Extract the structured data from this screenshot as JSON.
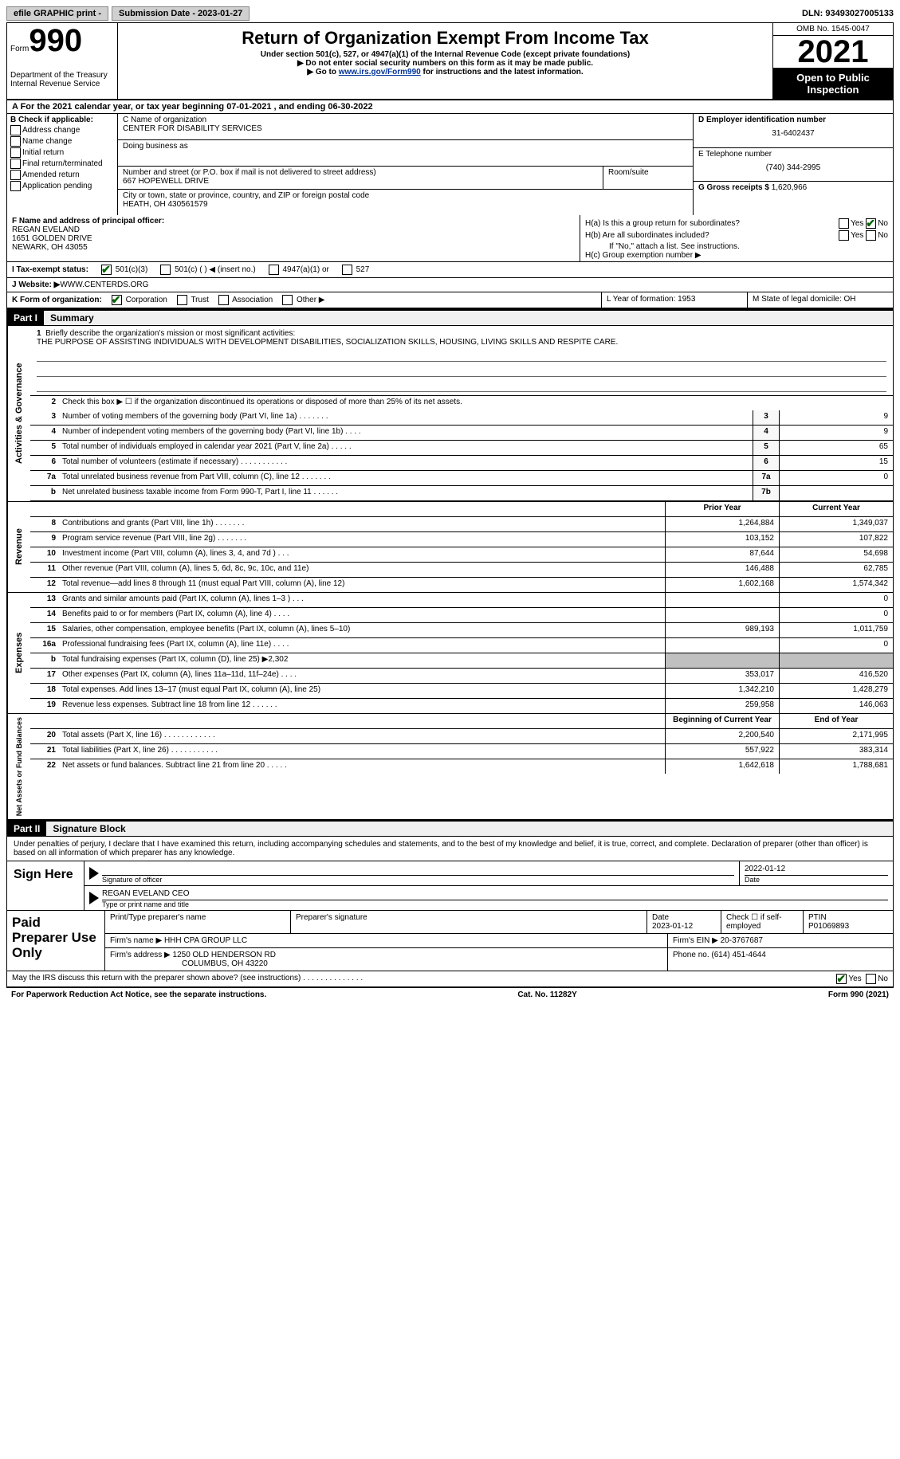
{
  "topbar": {
    "efile": "efile GRAPHIC print -",
    "submission_label": "Submission Date - 2023-01-27",
    "dln_label": "DLN: 93493027005133"
  },
  "header": {
    "form_word": "Form",
    "form_number": "990",
    "dept": "Department of the Treasury",
    "irs": "Internal Revenue Service",
    "title": "Return of Organization Exempt From Income Tax",
    "subtitle": "Under section 501(c), 527, or 4947(a)(1) of the Internal Revenue Code (except private foundations)",
    "warn1": "▶ Do not enter social security numbers on this form as it may be made public.",
    "warn2_pre": "▶ Go to ",
    "warn2_link": "www.irs.gov/Form990",
    "warn2_post": " for instructions and the latest information.",
    "omb": "OMB No. 1545-0047",
    "year": "2021",
    "inspection": "Open to Public Inspection"
  },
  "lineA": "A For the 2021 calendar year, or tax year beginning 07-01-2021    , and ending 06-30-2022",
  "B": {
    "label": "B Check if applicable:",
    "opts": [
      "Address change",
      "Name change",
      "Initial return",
      "Final return/terminated",
      "Amended return",
      "Application pending"
    ]
  },
  "C": {
    "name_label": "C Name of organization",
    "name": "CENTER FOR DISABILITY SERVICES",
    "dba_label": "Doing business as",
    "addr_label": "Number and street (or P.O. box if mail is not delivered to street address)",
    "room_label": "Room/suite",
    "addr": "667 HOPEWELL DRIVE",
    "city_label": "City or town, state or province, country, and ZIP or foreign postal code",
    "city": "HEATH, OH  430561579"
  },
  "D": {
    "ein_label": "D Employer identification number",
    "ein": "31-6402437",
    "phone_label": "E Telephone number",
    "phone": "(740) 344-2995",
    "gross_label": "G Gross receipts $",
    "gross": "1,620,966"
  },
  "F": {
    "label": "F  Name and address of principal officer:",
    "name": "REGAN EVELAND",
    "addr1": "1651 GOLDEN DRIVE",
    "addr2": "NEWARK, OH  43055"
  },
  "H": {
    "a_label": "H(a)  Is this a group return for subordinates?",
    "b_label": "H(b)  Are all subordinates included?",
    "note": "If \"No,\" attach a list. See instructions.",
    "c_label": "H(c)  Group exemption number ▶"
  },
  "I": {
    "label": "I  Tax-exempt status:",
    "opts": [
      "501(c)(3)",
      "501(c) (  ) ◀ (insert no.)",
      "4947(a)(1) or",
      "527"
    ]
  },
  "J": {
    "label": "J  Website: ▶",
    "value": " WWW.CENTERDS.ORG"
  },
  "K": {
    "label": "K Form of organization:",
    "opts": [
      "Corporation",
      "Trust",
      "Association",
      "Other ▶"
    ],
    "L": "L Year of formation: 1953",
    "M": "M State of legal domicile: OH"
  },
  "part1": {
    "tag": "Part I",
    "title": "Summary",
    "line1_label": "Briefly describe the organization's mission or most significant activities:",
    "mission": "THE PURPOSE OF ASSISTING INDIVIDUALS WITH DEVELOPMENT DISABILITIES, SOCIALIZATION SKILLS, HOUSING, LIVING SKILLS AND RESPITE CARE.",
    "line2": "Check this box ▶ ☐  if the organization discontinued its operations or disposed of more than 25% of its net assets.",
    "sidebar1": "Activities & Governance",
    "sidebar2": "Revenue",
    "sidebar3": "Expenses",
    "sidebar4": "Net Assets or Fund Balances",
    "col_prior": "Prior Year",
    "col_current": "Current Year",
    "col_boy": "Beginning of Current Year",
    "col_eoy": "End of Year",
    "rows_gov": [
      {
        "n": "3",
        "label": "Number of voting members of the governing body (Part VI, line 1a)   .    .    .    .    .    .    .",
        "box": "3",
        "v": "9"
      },
      {
        "n": "4",
        "label": "Number of independent voting members of the governing body (Part VI, line 1b)  .    .    .    .",
        "box": "4",
        "v": "9"
      },
      {
        "n": "5",
        "label": "Total number of individuals employed in calendar year 2021 (Part V, line 2a)   .    .    .    .    .",
        "box": "5",
        "v": "65"
      },
      {
        "n": "6",
        "label": "Total number of volunteers (estimate if necessary)    .    .    .    .    .    .    .    .    .    .    .",
        "box": "6",
        "v": "15"
      },
      {
        "n": "7a",
        "label": "Total unrelated business revenue from Part VIII, column (C), line 12    .    .    .    .    .    .    .",
        "box": "7a",
        "v": "0"
      },
      {
        "n": "b",
        "label": "Net unrelated business taxable income from Form 990-T, Part I, line 11   .    .    .    .    .    .",
        "box": "7b",
        "v": ""
      }
    ],
    "rows_rev": [
      {
        "n": "8",
        "label": "Contributions and grants (Part VIII, line 1h)   .    .    .    .    .    .    .",
        "p": "1,264,884",
        "c": "1,349,037"
      },
      {
        "n": "9",
        "label": "Program service revenue (Part VIII, line 2g)    .    .    .    .    .    .    .",
        "p": "103,152",
        "c": "107,822"
      },
      {
        "n": "10",
        "label": "Investment income (Part VIII, column (A), lines 3, 4, and 7d )   .    .    .",
        "p": "87,644",
        "c": "54,698"
      },
      {
        "n": "11",
        "label": "Other revenue (Part VIII, column (A), lines 5, 6d, 8c, 9c, 10c, and 11e)",
        "p": "146,488",
        "c": "62,785"
      },
      {
        "n": "12",
        "label": "Total revenue—add lines 8 through 11 (must equal Part VIII, column (A), line 12)",
        "p": "1,602,168",
        "c": "1,574,342"
      }
    ],
    "rows_exp": [
      {
        "n": "13",
        "label": "Grants and similar amounts paid (Part IX, column (A), lines 1–3 )  .    .    .",
        "p": "",
        "c": "0"
      },
      {
        "n": "14",
        "label": "Benefits paid to or for members (Part IX, column (A), line 4)   .    .    .    .",
        "p": "",
        "c": "0"
      },
      {
        "n": "15",
        "label": "Salaries, other compensation, employee benefits (Part IX, column (A), lines 5–10)",
        "p": "989,193",
        "c": "1,011,759"
      },
      {
        "n": "16a",
        "label": "Professional fundraising fees (Part IX, column (A), line 11e)   .    .    .    .",
        "p": "",
        "c": "0"
      },
      {
        "n": "b",
        "label": "Total fundraising expenses (Part IX, column (D), line 25) ▶2,302",
        "p": "grey",
        "c": "grey"
      },
      {
        "n": "17",
        "label": "Other expenses (Part IX, column (A), lines 11a–11d, 11f–24e)   .    .    .    .",
        "p": "353,017",
        "c": "416,520"
      },
      {
        "n": "18",
        "label": "Total expenses. Add lines 13–17 (must equal Part IX, column (A), line 25)",
        "p": "1,342,210",
        "c": "1,428,279"
      },
      {
        "n": "19",
        "label": "Revenue less expenses. Subtract line 18 from line 12  .    .    .    .    .    .",
        "p": "259,958",
        "c": "146,063"
      }
    ],
    "rows_net": [
      {
        "n": "20",
        "label": "Total assets (Part X, line 16)  .    .    .    .    .    .    .    .    .    .    .    .",
        "p": "2,200,540",
        "c": "2,171,995"
      },
      {
        "n": "21",
        "label": "Total liabilities (Part X, line 26)   .    .    .    .    .    .    .    .    .    .    .",
        "p": "557,922",
        "c": "383,314"
      },
      {
        "n": "22",
        "label": "Net assets or fund balances. Subtract line 21 from line 20  .    .    .    .    .",
        "p": "1,642,618",
        "c": "1,788,681"
      }
    ]
  },
  "part2": {
    "tag": "Part II",
    "title": "Signature Block",
    "decl": "Under penalties of perjury, I declare that I have examined this return, including accompanying schedules and statements, and to the best of my knowledge and belief, it is true, correct, and complete. Declaration of preparer (other than officer) is based on all information of which preparer has any knowledge."
  },
  "sign": {
    "left": "Sign Here",
    "sig_label": "Signature of officer",
    "date_val": "2022-01-12",
    "date_label": "Date",
    "name_val": "REGAN EVELAND CEO",
    "name_label": "Type or print name and title"
  },
  "paid": {
    "left": "Paid Preparer Use Only",
    "h1": "Print/Type preparer's name",
    "h2": "Preparer's signature",
    "h3_label": "Date",
    "h3_val": "2023-01-12",
    "h4": "Check ☐ if self-employed",
    "h5_label": "PTIN",
    "h5_val": "P01069893",
    "firm_name_label": "Firm's name      ▶",
    "firm_name": "HHH CPA GROUP LLC",
    "firm_ein_label": "Firm's EIN ▶",
    "firm_ein": "20-3767687",
    "firm_addr_label": "Firm's address ▶",
    "firm_addr1": "1250 OLD HENDERSON RD",
    "firm_addr2": "COLUMBUS, OH  43220",
    "phone_label": "Phone no.",
    "phone": "(614) 451-4644"
  },
  "footer": {
    "discuss": "May the IRS discuss this return with the preparer shown above? (see instructions)   .    .    .    .    .    .    .    .    .    .    .    .    .    .",
    "yes": "Yes",
    "no": "No",
    "paperwork": "For Paperwork Reduction Act Notice, see the separate instructions.",
    "cat": "Cat. No. 11282Y",
    "form": "Form 990 (2021)"
  }
}
